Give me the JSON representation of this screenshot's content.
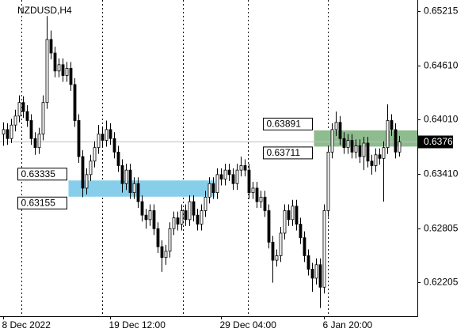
{
  "chart_data": {
    "type": "candlestick",
    "title": "NZDUSD,H4",
    "categories": [
      "8 Dec 2022",
      null,
      null,
      null,
      null,
      null,
      null,
      null,
      null,
      null,
      null,
      null,
      null,
      null,
      null,
      null,
      null,
      null,
      null,
      null,
      null,
      null,
      null,
      null,
      null,
      null,
      null,
      "19 Dec 12:00",
      null,
      null,
      null,
      null,
      null,
      null,
      null,
      null,
      null,
      null,
      null,
      null,
      null,
      null,
      null,
      null,
      null,
      null,
      null,
      null,
      null,
      null,
      null,
      null,
      null,
      null,
      null,
      "29 Dec 04:00",
      null,
      null,
      null,
      null,
      null,
      null,
      null,
      null,
      null,
      null,
      null,
      null,
      null,
      null,
      null,
      null,
      null,
      null,
      null,
      null,
      null,
      null,
      null,
      null,
      null,
      "6 Jan 20:00",
      null,
      null,
      null,
      null,
      null,
      null,
      null,
      null,
      null,
      null,
      null,
      null,
      null,
      null,
      null,
      null,
      null,
      null,
      null
    ],
    "ohlc": [
      [
        0.6385,
        0.6398,
        0.6372,
        0.639
      ],
      [
        0.639,
        0.6397,
        0.6373,
        0.638
      ],
      [
        0.638,
        0.6402,
        0.6375,
        0.6395
      ],
      [
        0.6395,
        0.6412,
        0.6388,
        0.6405
      ],
      [
        0.6405,
        0.6428,
        0.6398,
        0.642
      ],
      [
        0.642,
        0.6427,
        0.6403,
        0.641
      ],
      [
        0.641,
        0.6417,
        0.6393,
        0.64
      ],
      [
        0.64,
        0.6407,
        0.6373,
        0.638
      ],
      [
        0.638,
        0.6387,
        0.6362,
        0.637
      ],
      [
        0.637,
        0.6392,
        0.6363,
        0.6385
      ],
      [
        0.6385,
        0.6428,
        0.6378,
        0.642
      ],
      [
        0.642,
        0.6516,
        0.6413,
        0.649
      ],
      [
        0.649,
        0.65,
        0.6468,
        0.6475
      ],
      [
        0.6475,
        0.6482,
        0.6448,
        0.6455
      ],
      [
        0.6455,
        0.6469,
        0.6448,
        0.6462
      ],
      [
        0.6462,
        0.6469,
        0.6443,
        0.645
      ],
      [
        0.645,
        0.6465,
        0.6443,
        0.6458
      ],
      [
        0.6458,
        0.6465,
        0.6433,
        0.644
      ],
      [
        0.644,
        0.6447,
        0.6393,
        0.64
      ],
      [
        0.64,
        0.6407,
        0.6353,
        0.636
      ],
      [
        0.636,
        0.6367,
        0.6315,
        0.6325
      ],
      [
        0.6325,
        0.6347,
        0.6318,
        0.634
      ],
      [
        0.634,
        0.6362,
        0.6333,
        0.6355
      ],
      [
        0.6355,
        0.6377,
        0.6348,
        0.637
      ],
      [
        0.637,
        0.6395,
        0.6363,
        0.6385
      ],
      [
        0.6385,
        0.6392,
        0.6371,
        0.6378
      ],
      [
        0.6378,
        0.64,
        0.6371,
        0.639
      ],
      [
        0.639,
        0.6397,
        0.6373,
        0.638
      ],
      [
        0.638,
        0.6387,
        0.6358,
        0.6365
      ],
      [
        0.6365,
        0.6372,
        0.6343,
        0.635
      ],
      [
        0.635,
        0.6357,
        0.632,
        0.633
      ],
      [
        0.633,
        0.6352,
        0.6323,
        0.6345
      ],
      [
        0.6345,
        0.6352,
        0.6313,
        0.632
      ],
      [
        0.632,
        0.6337,
        0.6313,
        0.633
      ],
      [
        0.633,
        0.6337,
        0.6303,
        0.631
      ],
      [
        0.631,
        0.6317,
        0.6288,
        0.6295
      ],
      [
        0.6295,
        0.6302,
        0.628,
        0.629
      ],
      [
        0.629,
        0.6307,
        0.6283,
        0.63
      ],
      [
        0.63,
        0.6307,
        0.6273,
        0.628
      ],
      [
        0.628,
        0.6287,
        0.6253,
        0.626
      ],
      [
        0.626,
        0.6267,
        0.6232,
        0.6248
      ],
      [
        0.6248,
        0.6262,
        0.624,
        0.6255
      ],
      [
        0.6255,
        0.6287,
        0.6248,
        0.628
      ],
      [
        0.628,
        0.6299,
        0.6273,
        0.6292
      ],
      [
        0.6292,
        0.6299,
        0.6278,
        0.6285
      ],
      [
        0.6285,
        0.6307,
        0.6278,
        0.63
      ],
      [
        0.63,
        0.6307,
        0.6283,
        0.629
      ],
      [
        0.629,
        0.6317,
        0.6283,
        0.631
      ],
      [
        0.631,
        0.6317,
        0.6288,
        0.6295
      ],
      [
        0.6295,
        0.6302,
        0.6278,
        0.6285
      ],
      [
        0.6285,
        0.6307,
        0.6278,
        0.63
      ],
      [
        0.63,
        0.6322,
        0.6293,
        0.6315
      ],
      [
        0.6315,
        0.6337,
        0.6308,
        0.633
      ],
      [
        0.633,
        0.6337,
        0.6313,
        0.632
      ],
      [
        0.632,
        0.6347,
        0.6313,
        0.634
      ],
      [
        0.634,
        0.6347,
        0.6328,
        0.6335
      ],
      [
        0.6335,
        0.6352,
        0.6328,
        0.6345
      ],
      [
        0.6345,
        0.6352,
        0.6333,
        0.634
      ],
      [
        0.634,
        0.6347,
        0.6323,
        0.633
      ],
      [
        0.633,
        0.6352,
        0.6323,
        0.6345
      ],
      [
        0.6345,
        0.636,
        0.6338,
        0.635
      ],
      [
        0.635,
        0.6357,
        0.6338,
        0.6345
      ],
      [
        0.6345,
        0.6352,
        0.6313,
        0.632
      ],
      [
        0.632,
        0.6332,
        0.6313,
        0.6325
      ],
      [
        0.6325,
        0.6332,
        0.6303,
        0.631
      ],
      [
        0.631,
        0.6322,
        0.6303,
        0.6315
      ],
      [
        0.6315,
        0.6322,
        0.6293,
        0.63
      ],
      [
        0.63,
        0.6307,
        0.6258,
        0.6265
      ],
      [
        0.6265,
        0.6272,
        0.622,
        0.6245
      ],
      [
        0.6245,
        0.6257,
        0.6238,
        0.625
      ],
      [
        0.625,
        0.6282,
        0.6243,
        0.6275
      ],
      [
        0.6275,
        0.6307,
        0.6268,
        0.63
      ],
      [
        0.63,
        0.6307,
        0.6283,
        0.629
      ],
      [
        0.629,
        0.6312,
        0.6283,
        0.6305
      ],
      [
        0.6305,
        0.6312,
        0.6278,
        0.6285
      ],
      [
        0.6285,
        0.6292,
        0.6263,
        0.627
      ],
      [
        0.627,
        0.6277,
        0.6243,
        0.625
      ],
      [
        0.625,
        0.6257,
        0.6228,
        0.6235
      ],
      [
        0.6235,
        0.6242,
        0.621,
        0.6225
      ],
      [
        0.6225,
        0.6247,
        0.6218,
        0.624
      ],
      [
        0.624,
        0.6247,
        0.6192,
        0.6215
      ],
      [
        0.6215,
        0.6307,
        0.6208,
        0.63
      ],
      [
        0.63,
        0.6372,
        0.6293,
        0.6365
      ],
      [
        0.6365,
        0.6397,
        0.6358,
        0.639
      ],
      [
        0.639,
        0.641,
        0.6383,
        0.6398
      ],
      [
        0.6398,
        0.6405,
        0.6373,
        0.638
      ],
      [
        0.638,
        0.6387,
        0.6363,
        0.637
      ],
      [
        0.637,
        0.6385,
        0.6363,
        0.6378
      ],
      [
        0.6378,
        0.6385,
        0.6358,
        0.6365
      ],
      [
        0.6365,
        0.6379,
        0.6358,
        0.6372
      ],
      [
        0.6372,
        0.6379,
        0.6353,
        0.636
      ],
      [
        0.636,
        0.6382,
        0.6345,
        0.6375
      ],
      [
        0.6375,
        0.6382,
        0.6348,
        0.6355
      ],
      [
        0.6355,
        0.6362,
        0.634,
        0.635
      ],
      [
        0.635,
        0.6369,
        0.6343,
        0.6362
      ],
      [
        0.6362,
        0.6369,
        0.6351,
        0.6358
      ],
      [
        0.6358,
        0.6377,
        0.631,
        0.637
      ],
      [
        0.637,
        0.6418,
        0.6363,
        0.64
      ],
      [
        0.64,
        0.6407,
        0.6383,
        0.639
      ],
      [
        0.639,
        0.6397,
        0.6358,
        0.6365
      ],
      [
        0.6365,
        0.6383,
        0.636,
        0.63763
      ]
    ],
    "color": "#000000",
    "ylim": [
      0.61828,
      0.65338
    ],
    "yticks": [
      0.65215,
      {
        "value": 0.6461,
        "label": "0.64610"
      },
      {
        "value": 0.6401,
        "label": "0.64010"
      },
      {
        "value": 0.6341,
        "label": "0.63410"
      },
      0.62805,
      0.62205
    ],
    "current_price": 0.63763,
    "zones": [
      {
        "upper": 0.63335,
        "lower": 0.63155,
        "from": 17,
        "to": 53,
        "color": "#87ceeb"
      },
      {
        "upper": 0.63891,
        "lower": 0.63711,
        "from": 79,
        "to": 100,
        "color": "#8fbc8f"
      }
    ]
  }
}
